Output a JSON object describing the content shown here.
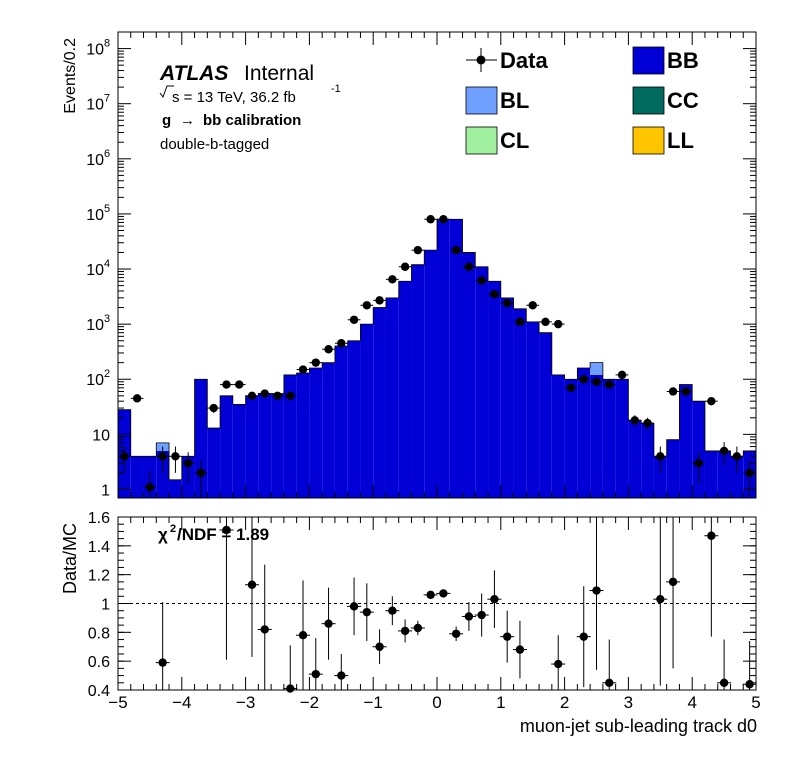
{
  "colors": {
    "BB": "#0000d6",
    "BL": "#6f9fff",
    "CC": "#006a5e",
    "CL": "#a0f0a0",
    "LL": "#ffc400",
    "data": "#000000"
  },
  "labels": {
    "atlas": "ATLAS",
    "internal": "Internal",
    "energy_prefix": "s = 13 TeV, 36.2 fb",
    "energy_exp": "-1",
    "calib_g": "g",
    "calib_rest": "bb calibration",
    "tag": "double-b-tagged",
    "chi2": "/NDF = 1.89",
    "chi2_symbol": "χ",
    "chi2_exp": "2"
  },
  "legend": [
    {
      "name": "Data",
      "kind": "marker"
    },
    {
      "name": "BB",
      "kind": "box",
      "color_key": "BB"
    },
    {
      "name": "BL",
      "kind": "box",
      "color_key": "BL"
    },
    {
      "name": "CC",
      "kind": "box",
      "color_key": "CC"
    },
    {
      "name": "CL",
      "kind": "box",
      "color_key": "CL"
    },
    {
      "name": "LL",
      "kind": "box",
      "color_key": "LL"
    }
  ],
  "chart_data": [
    {
      "type": "bar",
      "panel": "main",
      "ylabel": "Events/0.2",
      "xlim": [
        -5,
        5
      ],
      "log_y": true,
      "ylim": [
        0.7,
        200000000
      ],
      "y_ticks": [
        {
          "v": 1,
          "main": "1",
          "exp": ""
        },
        {
          "v": 10,
          "main": "10",
          "exp": ""
        },
        {
          "v": 100,
          "main": "10",
          "exp": "2"
        },
        {
          "v": 1000,
          "main": "10",
          "exp": "3"
        },
        {
          "v": 10000,
          "main": "10",
          "exp": "4"
        },
        {
          "v": 100000,
          "main": "10",
          "exp": "5"
        },
        {
          "v": 1000000,
          "main": "10",
          "exp": "6"
        },
        {
          "v": 10000000,
          "main": "10",
          "exp": "7"
        },
        {
          "v": 100000000,
          "main": "10",
          "exp": "8"
        }
      ],
      "bin_edges": [
        -5.0,
        -4.8,
        -4.6,
        -4.4,
        -4.2,
        -4.0,
        -3.8,
        -3.6,
        -3.4,
        -3.2,
        -3.0,
        -2.8,
        -2.6,
        -2.4,
        -2.2,
        -2.0,
        -1.8,
        -1.6,
        -1.4,
        -1.2,
        -1.0,
        -0.8,
        -0.6,
        -0.4,
        -0.2,
        0.0,
        0.2,
        0.4,
        0.6,
        0.8,
        1.0,
        1.2,
        1.4,
        1.6,
        1.8,
        2.0,
        2.2,
        2.4,
        2.6,
        2.8,
        3.0,
        3.2,
        3.4,
        3.6,
        3.8,
        4.0,
        4.2,
        4.4,
        4.6,
        4.8,
        5.0
      ],
      "series": [
        {
          "name": "BB",
          "values": [
            28,
            4,
            4,
            5,
            1.5,
            4,
            100,
            13,
            50,
            35,
            50,
            55,
            55,
            120,
            130,
            160,
            200,
            400,
            500,
            1000,
            2000,
            3000,
            6000,
            12000,
            22000,
            80000,
            80000,
            20000,
            11000,
            6000,
            3000,
            1900,
            1100,
            700,
            120,
            100,
            160,
            120,
            100,
            100,
            18,
            16,
            4,
            8,
            80,
            40,
            5,
            5,
            4,
            5
          ],
          "note_bl": "BL visible as small additions in bins 4 and 37"
        },
        {
          "name": "BL",
          "values": [
            0,
            0,
            0,
            2,
            0,
            0,
            0,
            0,
            0,
            0,
            0,
            0,
            0,
            0,
            0,
            0,
            0,
            0,
            0,
            0,
            0,
            0,
            0,
            0,
            0,
            0,
            0,
            0,
            0,
            0,
            0,
            0,
            0,
            0,
            0,
            0,
            0,
            80,
            0,
            0,
            0,
            0,
            0,
            0,
            0,
            0,
            0,
            0,
            0,
            0
          ]
        },
        {
          "name": "Data",
          "x": [
            -4.9,
            -4.7,
            -4.5,
            -4.3,
            -4.1,
            -3.9,
            -3.7,
            -3.5,
            -3.3,
            -3.1,
            -2.9,
            -2.7,
            -2.5,
            -2.3,
            -2.1,
            -1.9,
            -1.7,
            -1.5,
            -1.3,
            -1.1,
            -0.9,
            -0.7,
            -0.5,
            -0.3,
            -0.1,
            0.1,
            0.3,
            0.5,
            0.7,
            0.9,
            1.1,
            1.3,
            1.5,
            1.7,
            1.9,
            2.1,
            2.3,
            2.5,
            2.7,
            2.9,
            3.1,
            3.3,
            3.5,
            3.7,
            3.9,
            4.1,
            4.3,
            4.5,
            4.7,
            4.9
          ],
          "values": [
            4,
            45,
            1.1,
            4,
            4,
            3,
            2,
            30,
            80,
            80,
            50,
            55,
            50,
            50,
            150,
            200,
            350,
            450,
            1200,
            2200,
            2700,
            6500,
            11000,
            22000,
            80000,
            80000,
            22000,
            11000,
            6200,
            3500,
            2400,
            1100,
            2200,
            1100,
            1000,
            70,
            100,
            90,
            80,
            120,
            18,
            16,
            4,
            60,
            60,
            3,
            40,
            5,
            4,
            2
          ]
        }
      ]
    },
    {
      "type": "scatter",
      "panel": "ratio",
      "xlabel": "muon-jet sub-leading track d0",
      "ylabel": "Data/MC",
      "xlim": [
        -5,
        5
      ],
      "ylim": [
        0.4,
        1.6
      ],
      "y_ticks": [
        "0.4",
        "0.6",
        "0.8",
        "1",
        "1.2",
        "1.4",
        "1.6"
      ],
      "x_ticks": [
        "−5",
        "−4",
        "−3",
        "−2",
        "−1",
        "0",
        "1",
        "2",
        "3",
        "4",
        "5"
      ],
      "reference_line": 1,
      "points": [
        {
          "x": -4.3,
          "y": 0.59,
          "err": 0.42
        },
        {
          "x": -3.3,
          "y": 1.51,
          "err": 0.9
        },
        {
          "x": -2.9,
          "y": 1.13,
          "err": 0.5
        },
        {
          "x": -2.7,
          "y": 0.82,
          "err": 0.45
        },
        {
          "x": -2.3,
          "y": 0.41,
          "err": 0.3
        },
        {
          "x": -2.1,
          "y": 0.78,
          "err": 0.38
        },
        {
          "x": -1.9,
          "y": 0.51,
          "err": 0.25
        },
        {
          "x": -1.7,
          "y": 0.86,
          "err": 0.25
        },
        {
          "x": -1.5,
          "y": 0.5,
          "err": 0.15
        },
        {
          "x": -1.3,
          "y": 0.98,
          "err": 0.2
        },
        {
          "x": -1.1,
          "y": 0.94,
          "err": 0.2
        },
        {
          "x": -0.9,
          "y": 0.7,
          "err": 0.12
        },
        {
          "x": -0.7,
          "y": 0.95,
          "err": 0.1
        },
        {
          "x": -0.5,
          "y": 0.81,
          "err": 0.08
        },
        {
          "x": -0.3,
          "y": 0.83,
          "err": 0.05
        },
        {
          "x": -0.1,
          "y": 1.06,
          "err": 0.02
        },
        {
          "x": 0.1,
          "y": 1.07,
          "err": 0.02
        },
        {
          "x": 0.3,
          "y": 0.79,
          "err": 0.05
        },
        {
          "x": 0.5,
          "y": 0.91,
          "err": 0.1
        },
        {
          "x": 0.7,
          "y": 0.92,
          "err": 0.15
        },
        {
          "x": 0.9,
          "y": 1.03,
          "err": 0.2
        },
        {
          "x": 1.1,
          "y": 0.77,
          "err": 0.18
        },
        {
          "x": 1.3,
          "y": 0.68,
          "err": 0.2
        },
        {
          "x": 1.9,
          "y": 0.58,
          "err": 0.2
        },
        {
          "x": 2.3,
          "y": 0.77,
          "err": 0.35
        },
        {
          "x": 2.5,
          "y": 1.09,
          "err": 0.55
        },
        {
          "x": 2.7,
          "y": 0.45,
          "err": 0.3
        },
        {
          "x": 3.5,
          "y": 1.03,
          "err": 0.6
        },
        {
          "x": 3.7,
          "y": 1.15,
          "err": 0.6
        },
        {
          "x": 4.3,
          "y": 1.47,
          "err": 0.7
        },
        {
          "x": 4.5,
          "y": 0.45,
          "err": 0.3
        },
        {
          "x": 4.9,
          "y": 0.44,
          "err": 0.3
        }
      ]
    }
  ]
}
